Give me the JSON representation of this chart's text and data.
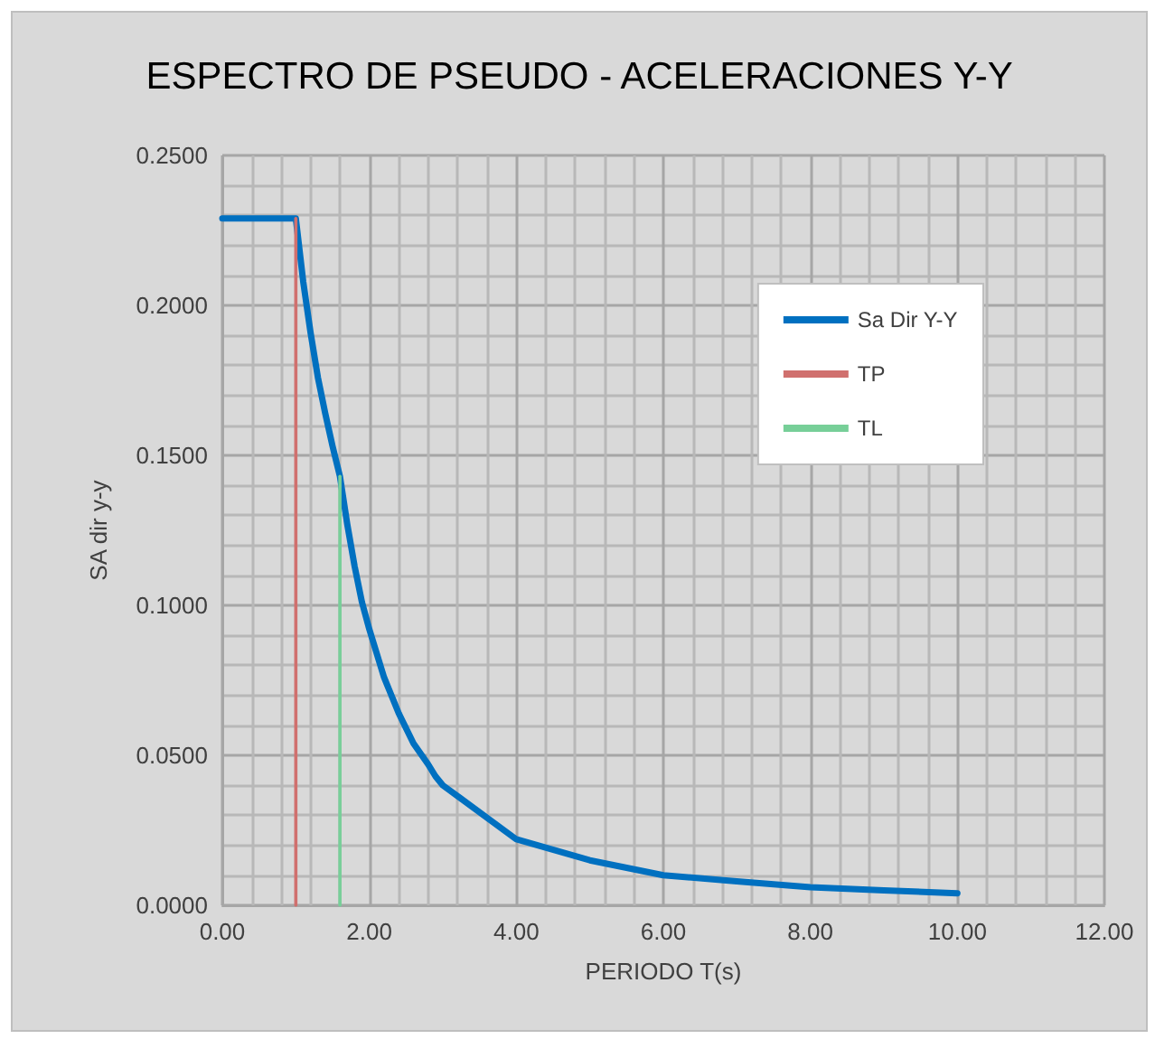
{
  "chart_data": {
    "type": "line",
    "title": "ESPECTRO DE PSEUDO - ACELERACIONES Y-Y",
    "xlabel": "PERIODO T(s)",
    "ylabel": "SA dir y-y",
    "xlim": [
      0,
      12
    ],
    "xticks": [
      {
        "value": 0,
        "label": "0.00"
      },
      {
        "value": 2,
        "label": "2.00"
      },
      {
        "value": 4,
        "label": "4.00"
      },
      {
        "value": 6,
        "label": "6.00"
      },
      {
        "value": 8,
        "label": "8.00"
      },
      {
        "value": 10,
        "label": "10.00"
      },
      {
        "value": 12,
        "label": "12.00"
      }
    ],
    "ylim": [
      0,
      0.25
    ],
    "yticks": [
      {
        "value": 0,
        "label": "0.0000"
      },
      {
        "value": 0.05,
        "label": "0.0500"
      },
      {
        "value": 0.1,
        "label": "0.1000"
      },
      {
        "value": 0.15,
        "label": "0.1500"
      },
      {
        "value": 0.2,
        "label": "0.2000"
      },
      {
        "value": 0.25,
        "label": "0.2500"
      }
    ],
    "grid": true,
    "legend": "top right",
    "marker": "none",
    "line_style": "solid",
    "series": [
      {
        "name": "Sa Dir Y-Y",
        "color": "#0070c0",
        "x": [
          0,
          1.0,
          1.1,
          1.2,
          1.3,
          1.4,
          1.5,
          1.6,
          1.7,
          1.8,
          1.9,
          2.0,
          2.2,
          2.4,
          2.6,
          2.8,
          2.9,
          3.0,
          4,
          5,
          6,
          7,
          8,
          9,
          10
        ],
        "values": [
          0.229,
          0.229,
          0.208,
          0.191,
          0.176,
          0.164,
          0.153,
          0.143,
          0.127,
          0.113,
          0.101,
          0.092,
          0.076,
          0.064,
          0.054,
          0.047,
          0.043,
          0.04,
          0.022,
          0.015,
          0.01,
          0.008,
          0.006,
          0.005,
          0.004
        ]
      },
      {
        "name": "TP",
        "color": "#d0706e",
        "x": [
          1.0,
          1.0
        ],
        "values": [
          0,
          0.229
        ]
      },
      {
        "name": "TL",
        "color": "#77cf98",
        "x": [
          1.6,
          1.6
        ],
        "values": [
          0,
          0.143
        ]
      }
    ]
  }
}
